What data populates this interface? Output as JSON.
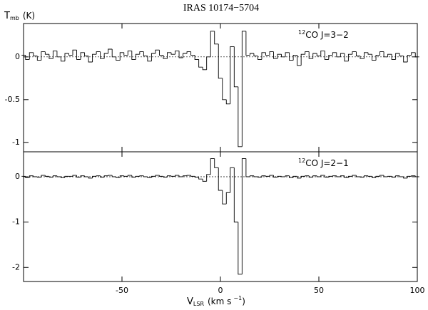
{
  "chart_data": [
    {
      "type": "step",
      "title": "IRAS 10174−5704",
      "ylabel": {
        "main": "T",
        "sub": "mb",
        "rest": "(K)"
      },
      "line_label": {
        "sup": "12",
        "main": "CO J=3−2"
      },
      "xlim": [
        -100,
        100
      ],
      "xticks": [
        -50,
        0,
        50,
        100
      ],
      "ylim": [
        -1.11,
        0.39
      ],
      "yticks": [
        -1,
        -0.5,
        0
      ],
      "zero_line": true,
      "x": [
        -100,
        -98,
        -96,
        -94,
        -92,
        -90,
        -88,
        -86,
        -84,
        -82,
        -80,
        -78,
        -76,
        -74,
        -72,
        -70,
        -68,
        -66,
        -64,
        -62,
        -60,
        -58,
        -56,
        -54,
        -52,
        -50,
        -48,
        -46,
        -44,
        -42,
        -40,
        -38,
        -36,
        -34,
        -32,
        -30,
        -28,
        -26,
        -24,
        -22,
        -20,
        -18,
        -16,
        -14,
        -12,
        -10,
        -8,
        -6,
        -4,
        -2,
        0,
        2,
        4,
        6,
        8,
        10,
        12,
        14,
        16,
        18,
        20,
        22,
        24,
        26,
        28,
        30,
        32,
        34,
        36,
        38,
        40,
        42,
        44,
        46,
        48,
        50,
        52,
        54,
        56,
        58,
        60,
        62,
        64,
        66,
        68,
        70,
        72,
        74,
        76,
        78,
        80,
        82,
        84,
        86,
        88,
        90,
        92,
        94,
        96,
        98,
        100
      ],
      "series": [
        {
          "color": "#000000",
          "values": [
            0.02,
            -0.03,
            0.05,
            0.01,
            -0.04,
            0.06,
            0.03,
            -0.02,
            0.07,
            0.0,
            -0.05,
            0.04,
            0.02,
            0.08,
            -0.03,
            0.05,
            0.01,
            -0.06,
            0.03,
            0.06,
            -0.02,
            0.04,
            0.09,
            0.0,
            -0.04,
            0.05,
            0.02,
            0.07,
            -0.03,
            0.03,
            0.06,
            0.01,
            -0.05,
            0.04,
            0.08,
            0.02,
            -0.02,
            0.05,
            0.03,
            0.07,
            -0.01,
            0.04,
            0.06,
            0.02,
            -0.03,
            -0.12,
            -0.15,
            0.0,
            0.3,
            0.15,
            -0.25,
            -0.5,
            -0.55,
            0.12,
            -0.35,
            -1.05,
            0.3,
            0.02,
            0.04,
            0.01,
            -0.03,
            0.05,
            0.02,
            0.06,
            -0.02,
            0.03,
            0.0,
            0.05,
            -0.04,
            0.02,
            -0.1,
            0.03,
            0.06,
            -0.02,
            0.04,
            0.01,
            0.07,
            -0.03,
            0.02,
            0.05,
            0.0,
            0.04,
            -0.05,
            0.03,
            0.06,
            0.01,
            -0.02,
            0.05,
            0.03,
            -0.04,
            0.02,
            0.06,
            0.0,
            0.03,
            -0.03,
            0.04,
            0.01,
            -0.06,
            0.02,
            0.05,
            0.0
          ]
        }
      ]
    },
    {
      "type": "step",
      "xlabel": {
        "main": "V",
        "sub": "LSR",
        "rest": "(km s",
        "sup": "−1",
        "end": ")"
      },
      "line_label": {
        "sup": "12",
        "main": "CO J=2−1"
      },
      "xlim": [
        -100,
        100
      ],
      "xticks": [
        -50,
        0,
        50,
        100
      ],
      "ylim": [
        -2.31,
        0.55
      ],
      "yticks": [
        -2,
        -1,
        0
      ],
      "zero_line": true,
      "x": [
        -100,
        -98,
        -96,
        -94,
        -92,
        -90,
        -88,
        -86,
        -84,
        -82,
        -80,
        -78,
        -76,
        -74,
        -72,
        -70,
        -68,
        -66,
        -64,
        -62,
        -60,
        -58,
        -56,
        -54,
        -52,
        -50,
        -48,
        -46,
        -44,
        -42,
        -40,
        -38,
        -36,
        -34,
        -32,
        -30,
        -28,
        -26,
        -24,
        -22,
        -20,
        -18,
        -16,
        -14,
        -12,
        -10,
        -8,
        -6,
        -4,
        -2,
        0,
        2,
        4,
        6,
        8,
        10,
        12,
        14,
        16,
        18,
        20,
        22,
        24,
        26,
        28,
        30,
        32,
        34,
        36,
        38,
        40,
        42,
        44,
        46,
        48,
        50,
        52,
        54,
        56,
        58,
        60,
        62,
        64,
        66,
        68,
        70,
        72,
        74,
        76,
        78,
        80,
        82,
        84,
        86,
        88,
        90,
        92,
        94,
        96,
        98,
        100
      ],
      "series": [
        {
          "color": "#000000",
          "values": [
            0.01,
            -0.02,
            0.02,
            0.0,
            -0.01,
            0.03,
            0.01,
            -0.01,
            0.02,
            0.0,
            -0.02,
            0.01,
            0.01,
            0.03,
            -0.01,
            0.02,
            0.0,
            -0.03,
            0.01,
            0.02,
            -0.01,
            0.02,
            0.03,
            0.0,
            -0.02,
            0.02,
            0.01,
            0.03,
            -0.01,
            0.01,
            0.02,
            0.0,
            -0.02,
            0.01,
            0.03,
            0.01,
            -0.01,
            0.02,
            0.01,
            0.03,
            0.0,
            0.02,
            0.03,
            0.01,
            -0.01,
            -0.05,
            -0.1,
            0.05,
            0.4,
            0.2,
            -0.3,
            -0.6,
            -0.35,
            0.2,
            -1.0,
            -2.15,
            0.4,
            0.0,
            0.02,
            0.0,
            -0.01,
            0.02,
            0.01,
            0.03,
            -0.01,
            0.01,
            0.0,
            0.02,
            -0.02,
            0.01,
            -0.03,
            0.01,
            0.02,
            -0.01,
            0.02,
            0.0,
            0.03,
            -0.01,
            0.01,
            0.02,
            0.0,
            0.02,
            -0.02,
            0.01,
            0.03,
            0.0,
            -0.01,
            0.02,
            0.01,
            -0.02,
            0.01,
            0.03,
            0.0,
            0.01,
            -0.01,
            0.02,
            0.0,
            -0.03,
            0.01,
            0.02,
            0.0
          ]
        }
      ]
    }
  ]
}
